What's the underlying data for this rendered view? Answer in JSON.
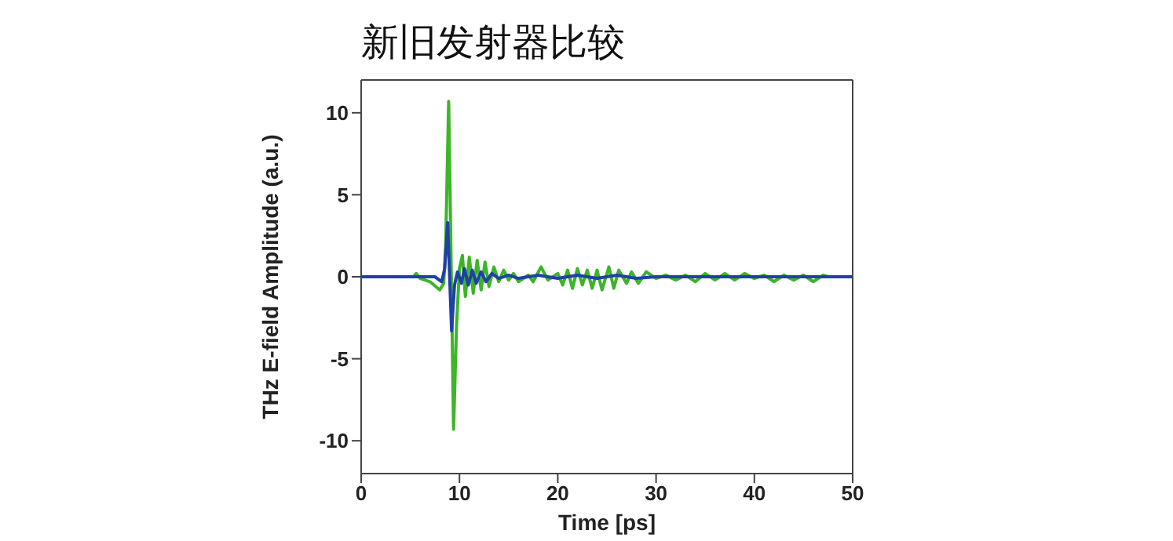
{
  "chart_data": {
    "type": "line",
    "title": "新旧发射器比较",
    "xlabel": "Time [ps]",
    "ylabel": "THz E-field Amplitude (a.u.)",
    "xlim": [
      0,
      50
    ],
    "xticks": [
      0,
      10,
      20,
      30,
      40,
      50
    ],
    "ylim": [
      -12,
      12
    ],
    "yticks": [
      -10,
      -5,
      0,
      5,
      10
    ],
    "grid": false,
    "legend": false,
    "marker": "none",
    "line_style": "solid",
    "series": [
      {
        "color": "#3cb528",
        "x": [
          0,
          5.3,
          5.6,
          6,
          7,
          8,
          8.4,
          8.6,
          8.9,
          9.1,
          9.4,
          9.7,
          10,
          10.3,
          10.6,
          11,
          11.4,
          11.8,
          12.2,
          12.6,
          13,
          13.5,
          14,
          14.5,
          15,
          15.5,
          16,
          17,
          17.5,
          18.3,
          19,
          20,
          20.5,
          21,
          21.5,
          22,
          22.5,
          23,
          23.5,
          24,
          24.5,
          25.2,
          25.7,
          26.2,
          27,
          27.5,
          28.2,
          29,
          30,
          31,
          32,
          33,
          34,
          35,
          36,
          37,
          38,
          39,
          40,
          41,
          42,
          43,
          44,
          45,
          46,
          47,
          47.5,
          50
        ],
        "values": [
          0,
          0,
          0.2,
          -0.1,
          -0.3,
          -0.8,
          -0.4,
          2,
          10.7,
          3,
          -9.3,
          -3,
          0.5,
          1.3,
          -1.2,
          1.2,
          -1,
          1,
          -0.8,
          0.9,
          -0.6,
          0.6,
          -0.3,
          0.4,
          -0.2,
          0.2,
          -0.3,
          0.1,
          -0.3,
          0.6,
          -0.2,
          0.2,
          -0.5,
          0.4,
          -0.7,
          0.5,
          -0.5,
          0.4,
          -0.7,
          0.4,
          -0.8,
          0.6,
          -0.7,
          0.4,
          -0.4,
          0.3,
          -0.4,
          0.3,
          -0.1,
          0.1,
          -0.2,
          0.1,
          -0.3,
          0.2,
          -0.2,
          0.2,
          -0.2,
          0.2,
          -0.1,
          0.1,
          -0.3,
          0.1,
          -0.2,
          0.1,
          -0.3,
          0.1,
          0,
          0
        ]
      },
      {
        "color": "#2040a8",
        "x": [
          0,
          7.5,
          8.2,
          8.5,
          8.8,
          9,
          9.2,
          9.5,
          9.8,
          10.2,
          10.5,
          10.9,
          11.3,
          11.7,
          12.2,
          12.7,
          13.3,
          14,
          15,
          16,
          18,
          20,
          22,
          24,
          26,
          28,
          30,
          50
        ],
        "values": [
          0,
          0,
          -0.3,
          0.5,
          3.3,
          0,
          -3.3,
          -0.5,
          0.3,
          -0.4,
          0.5,
          -0.5,
          0.4,
          -0.4,
          0.3,
          -0.3,
          0.2,
          -0.1,
          0.1,
          -0.1,
          0.1,
          -0.1,
          0.1,
          -0.1,
          0.1,
          -0.1,
          0,
          0
        ]
      }
    ]
  }
}
